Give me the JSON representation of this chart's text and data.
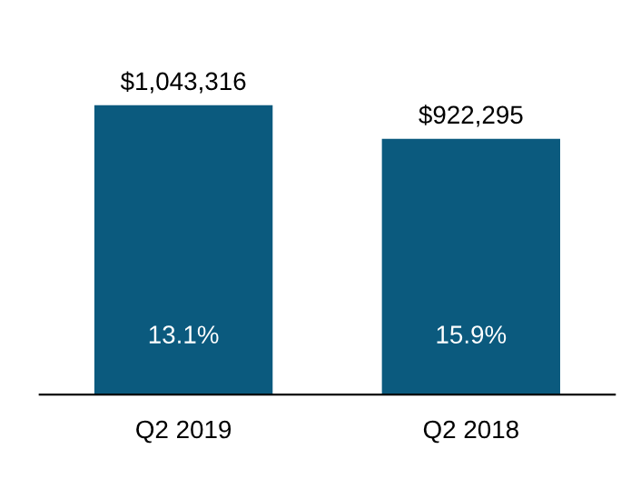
{
  "chart_data": {
    "type": "bar",
    "categories": [
      "Q2 2019",
      "Q2 2018"
    ],
    "values": [
      1043316,
      922295
    ],
    "value_labels": [
      "$1,043,316",
      "$922,295"
    ],
    "color": "#0b5a7e",
    "annotations": [
      "13.1%",
      "15.9%"
    ],
    "grid": false,
    "legend": false
  }
}
